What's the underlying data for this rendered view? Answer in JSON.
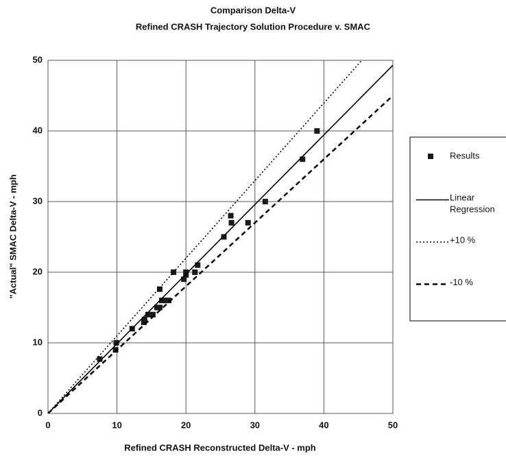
{
  "chart_data": {
    "type": "scatter",
    "title": "Comparison Delta-V",
    "subtitle": "Refined CRASH Trajectory Solution Procedure v. SMAC",
    "x_label": "Refined CRASH Reconstructed Delta-V - mph",
    "y_label": "\"Actual\" SMAC Delta-V - mph",
    "xlim": [
      0,
      50
    ],
    "ylim": [
      0,
      50
    ],
    "xticks": [
      0,
      10,
      20,
      30,
      40,
      50
    ],
    "yticks": [
      0,
      10,
      20,
      30,
      40,
      50
    ],
    "grid": true,
    "legend": "right",
    "series": [
      {
        "name": "Results",
        "color": "#1a1a1a",
        "mode": "markers",
        "x": [
          7.5,
          9.8,
          9.9,
          12.2,
          13.9,
          14,
          14.5,
          15.2,
          15.8,
          16.2,
          16.2,
          16.5,
          17,
          17.5,
          18.2,
          19.7,
          20,
          20,
          21.3,
          21.7,
          25.5,
          26.5,
          26.6,
          29,
          31.5,
          36.9,
          39
        ],
        "values": [
          7.7,
          9,
          10,
          12,
          12.9,
          13.3,
          14,
          14,
          15,
          15,
          17.6,
          16,
          16,
          16,
          20,
          19,
          19.6,
          20,
          20,
          21,
          25,
          28,
          27,
          27,
          30,
          36,
          40
        ]
      },
      {
        "name": "Linear Regression",
        "color": "#000000",
        "mode": "line",
        "dash": "solid",
        "x": [
          0,
          50
        ],
        "values": [
          0,
          49.3
        ]
      },
      {
        "name": "+10 %",
        "color": "#000000",
        "mode": "line",
        "dash": "dotted",
        "x": [
          0,
          45.5
        ],
        "values": [
          0,
          50
        ]
      },
      {
        "name": "-10 %",
        "color": "#000000",
        "mode": "line",
        "dash": "dashed",
        "x": [
          0,
          50
        ],
        "values": [
          0,
          45
        ]
      }
    ]
  }
}
